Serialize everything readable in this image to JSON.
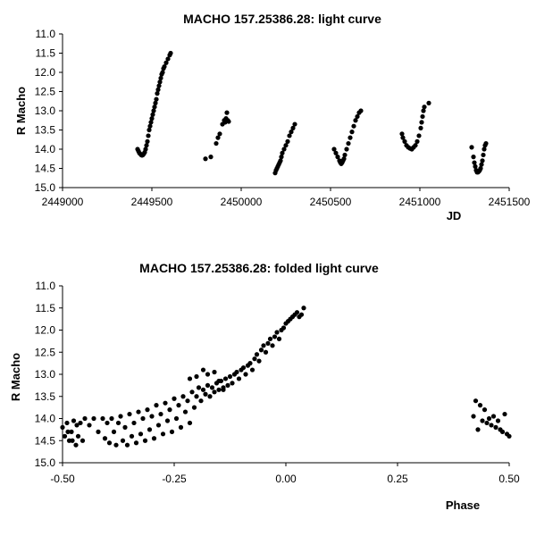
{
  "chart_data": [
    {
      "type": "scatter",
      "title": "MACHO 157.25386.28: light curve",
      "xlabel": "JD",
      "ylabel": "R Macho",
      "xlim": [
        2449000,
        2451500
      ],
      "ylim": [
        11.0,
        15.0
      ],
      "y_inverted": true,
      "grid": false,
      "legend": "none",
      "xticks": [
        "2449000",
        "2449500",
        "2450000",
        "2450500",
        "2451000",
        "2451500"
      ],
      "yticks": [
        "11.0",
        "11.5",
        "12.0",
        "12.5",
        "13.0",
        "13.5",
        "14.0",
        "14.5",
        "15.0"
      ],
      "color": "#000000",
      "points": [
        [
          2449420,
          14.0
        ],
        [
          2449425,
          14.05
        ],
        [
          2449430,
          14.1
        ],
        [
          2449435,
          14.12
        ],
        [
          2449440,
          14.15
        ],
        [
          2449445,
          14.16
        ],
        [
          2449450,
          14.15
        ],
        [
          2449455,
          14.12
        ],
        [
          2449460,
          14.08
        ],
        [
          2449465,
          14.0
        ],
        [
          2449470,
          13.9
        ],
        [
          2449475,
          13.8
        ],
        [
          2449480,
          13.65
        ],
        [
          2449485,
          13.5
        ],
        [
          2449490,
          13.4
        ],
        [
          2449495,
          13.3
        ],
        [
          2449500,
          13.2
        ],
        [
          2449505,
          13.1
        ],
        [
          2449510,
          13.0
        ],
        [
          2449515,
          12.9
        ],
        [
          2449520,
          12.8
        ],
        [
          2449525,
          12.7
        ],
        [
          2449530,
          12.55
        ],
        [
          2449535,
          12.45
        ],
        [
          2449540,
          12.35
        ],
        [
          2449545,
          12.25
        ],
        [
          2449550,
          12.15
        ],
        [
          2449555,
          12.05
        ],
        [
          2449560,
          12.0
        ],
        [
          2449565,
          11.9
        ],
        [
          2449570,
          11.85
        ],
        [
          2449580,
          11.75
        ],
        [
          2449590,
          11.65
        ],
        [
          2449600,
          11.55
        ],
        [
          2449605,
          11.5
        ],
        [
          2449800,
          14.25
        ],
        [
          2449830,
          14.2
        ],
        [
          2449860,
          13.85
        ],
        [
          2449870,
          13.7
        ],
        [
          2449880,
          13.6
        ],
        [
          2449895,
          13.35
        ],
        [
          2449905,
          13.25
        ],
        [
          2449910,
          13.3
        ],
        [
          2449915,
          13.2
        ],
        [
          2449920,
          13.05
        ],
        [
          2449925,
          13.25
        ],
        [
          2449930,
          13.28
        ],
        [
          2450190,
          14.62
        ],
        [
          2450195,
          14.55
        ],
        [
          2450200,
          14.5
        ],
        [
          2450205,
          14.45
        ],
        [
          2450210,
          14.4
        ],
        [
          2450215,
          14.35
        ],
        [
          2450220,
          14.3
        ],
        [
          2450225,
          14.2
        ],
        [
          2450230,
          14.1
        ],
        [
          2450240,
          14.0
        ],
        [
          2450250,
          13.9
        ],
        [
          2450260,
          13.8
        ],
        [
          2450270,
          13.65
        ],
        [
          2450280,
          13.55
        ],
        [
          2450290,
          13.45
        ],
        [
          2450300,
          13.35
        ],
        [
          2450520,
          14.0
        ],
        [
          2450530,
          14.1
        ],
        [
          2450540,
          14.2
        ],
        [
          2450550,
          14.3
        ],
        [
          2450555,
          14.35
        ],
        [
          2450560,
          14.38
        ],
        [
          2450565,
          14.35
        ],
        [
          2450570,
          14.3
        ],
        [
          2450575,
          14.25
        ],
        [
          2450580,
          14.15
        ],
        [
          2450590,
          14.0
        ],
        [
          2450600,
          13.85
        ],
        [
          2450610,
          13.7
        ],
        [
          2450620,
          13.55
        ],
        [
          2450630,
          13.4
        ],
        [
          2450640,
          13.25
        ],
        [
          2450650,
          13.15
        ],
        [
          2450660,
          13.05
        ],
        [
          2450670,
          13.0
        ],
        [
          2450900,
          13.6
        ],
        [
          2450905,
          13.7
        ],
        [
          2450915,
          13.8
        ],
        [
          2450925,
          13.9
        ],
        [
          2450935,
          13.95
        ],
        [
          2450945,
          13.98
        ],
        [
          2450955,
          14.0
        ],
        [
          2450965,
          13.95
        ],
        [
          2450975,
          13.9
        ],
        [
          2450985,
          13.8
        ],
        [
          2450995,
          13.65
        ],
        [
          2451005,
          13.45
        ],
        [
          2451010,
          13.3
        ],
        [
          2451015,
          13.15
        ],
        [
          2451020,
          13.0
        ],
        [
          2451025,
          12.9
        ],
        [
          2451050,
          12.8
        ],
        [
          2451290,
          13.95
        ],
        [
          2451300,
          14.2
        ],
        [
          2451305,
          14.35
        ],
        [
          2451310,
          14.45
        ],
        [
          2451315,
          14.55
        ],
        [
          2451320,
          14.6
        ],
        [
          2451325,
          14.6
        ],
        [
          2451330,
          14.58
        ],
        [
          2451335,
          14.55
        ],
        [
          2451340,
          14.5
        ],
        [
          2451345,
          14.4
        ],
        [
          2451350,
          14.3
        ],
        [
          2451355,
          14.15
        ],
        [
          2451360,
          14.0
        ],
        [
          2451365,
          13.9
        ],
        [
          2451370,
          13.85
        ]
      ]
    },
    {
      "type": "scatter",
      "title": "MACHO 157.25386.28: folded light curve",
      "xlabel": "Phase",
      "ylabel": "R Macho",
      "xlim": [
        -0.5,
        0.5
      ],
      "ylim": [
        11.0,
        15.0
      ],
      "y_inverted": true,
      "grid": false,
      "legend": "none",
      "xticks": [
        "-0.50",
        "-0.25",
        "0.00",
        "0.25",
        "0.50"
      ],
      "yticks": [
        "11.0",
        "11.5",
        "12.0",
        "12.5",
        "13.0",
        "13.5",
        "14.0",
        "14.5",
        "15.0"
      ],
      "color": "#000000",
      "points": [
        [
          -0.5,
          14.2
        ],
        [
          -0.495,
          14.4
        ],
        [
          -0.49,
          14.1
        ],
        [
          -0.488,
          14.3
        ],
        [
          -0.485,
          14.5
        ],
        [
          -0.48,
          14.3
        ],
        [
          -0.478,
          14.5
        ],
        [
          -0.475,
          14.05
        ],
        [
          -0.47,
          14.6
        ],
        [
          -0.468,
          14.15
        ],
        [
          -0.465,
          14.4
        ],
        [
          -0.46,
          14.1
        ],
        [
          -0.455,
          14.5
        ],
        [
          -0.45,
          14.0
        ],
        [
          -0.44,
          14.15
        ],
        [
          -0.43,
          14.0
        ],
        [
          -0.42,
          14.3
        ],
        [
          -0.41,
          14.0
        ],
        [
          -0.405,
          14.45
        ],
        [
          -0.4,
          14.1
        ],
        [
          -0.395,
          14.55
        ],
        [
          -0.39,
          14.0
        ],
        [
          -0.385,
          14.3
        ],
        [
          -0.38,
          14.6
        ],
        [
          -0.375,
          14.1
        ],
        [
          -0.37,
          13.95
        ],
        [
          -0.365,
          14.5
        ],
        [
          -0.36,
          14.2
        ],
        [
          -0.355,
          14.6
        ],
        [
          -0.35,
          13.9
        ],
        [
          -0.345,
          14.4
        ],
        [
          -0.34,
          14.1
        ],
        [
          -0.335,
          14.55
        ],
        [
          -0.33,
          13.85
        ],
        [
          -0.325,
          14.35
        ],
        [
          -0.32,
          14.0
        ],
        [
          -0.315,
          14.5
        ],
        [
          -0.31,
          13.8
        ],
        [
          -0.305,
          14.25
        ],
        [
          -0.3,
          13.95
        ],
        [
          -0.295,
          14.45
        ],
        [
          -0.29,
          13.7
        ],
        [
          -0.285,
          14.15
        ],
        [
          -0.28,
          13.9
        ],
        [
          -0.275,
          14.35
        ],
        [
          -0.27,
          13.65
        ],
        [
          -0.265,
          14.05
        ],
        [
          -0.26,
          13.8
        ],
        [
          -0.255,
          14.3
        ],
        [
          -0.25,
          13.55
        ],
        [
          -0.245,
          14.0
        ],
        [
          -0.24,
          13.7
        ],
        [
          -0.235,
          14.2
        ],
        [
          -0.23,
          13.5
        ],
        [
          -0.225,
          13.85
        ],
        [
          -0.22,
          13.6
        ],
        [
          -0.215,
          14.1
        ],
        [
          -0.21,
          13.4
        ],
        [
          -0.205,
          13.75
        ],
        [
          -0.2,
          13.5
        ],
        [
          -0.195,
          13.3
        ],
        [
          -0.19,
          13.6
        ],
        [
          -0.185,
          13.35
        ],
        [
          -0.18,
          13.45
        ],
        [
          -0.175,
          13.25
        ],
        [
          -0.17,
          13.5
        ],
        [
          -0.165,
          13.3
        ],
        [
          -0.16,
          13.4
        ],
        [
          -0.155,
          13.2
        ],
        [
          -0.15,
          13.35
        ],
        [
          -0.145,
          13.15
        ],
        [
          -0.14,
          13.3
        ],
        [
          -0.135,
          13.1
        ],
        [
          -0.13,
          13.25
        ],
        [
          -0.125,
          13.05
        ],
        [
          -0.12,
          13.2
        ],
        [
          -0.115,
          13.0
        ],
        [
          -0.11,
          12.95
        ],
        [
          -0.105,
          13.1
        ],
        [
          -0.1,
          12.9
        ],
        [
          -0.095,
          12.85
        ],
        [
          -0.09,
          13.0
        ],
        [
          -0.085,
          12.8
        ],
        [
          -0.08,
          12.75
        ],
        [
          -0.075,
          12.9
        ],
        [
          -0.07,
          12.65
        ],
        [
          -0.065,
          12.55
        ],
        [
          -0.06,
          12.7
        ],
        [
          -0.055,
          12.45
        ],
        [
          -0.05,
          12.35
        ],
        [
          -0.045,
          12.5
        ],
        [
          -0.04,
          12.3
        ],
        [
          -0.035,
          12.2
        ],
        [
          -0.03,
          12.35
        ],
        [
          -0.025,
          12.15
        ],
        [
          -0.02,
          12.05
        ],
        [
          -0.015,
          12.2
        ],
        [
          -0.01,
          12.0
        ],
        [
          -0.005,
          11.95
        ],
        [
          0.0,
          11.85
        ],
        [
          0.005,
          11.8
        ],
        [
          0.01,
          11.75
        ],
        [
          0.015,
          11.7
        ],
        [
          0.02,
          11.65
        ],
        [
          0.025,
          11.6
        ],
        [
          0.03,
          11.7
        ],
        [
          0.035,
          11.65
        ],
        [
          0.04,
          11.5
        ],
        [
          -0.215,
          13.1
        ],
        [
          -0.2,
          13.05
        ],
        [
          -0.185,
          12.9
        ],
        [
          -0.175,
          13.0
        ],
        [
          -0.16,
          12.95
        ],
        [
          -0.15,
          13.15
        ],
        [
          -0.14,
          13.35
        ],
        [
          0.42,
          13.95
        ],
        [
          0.425,
          13.6
        ],
        [
          0.43,
          14.25
        ],
        [
          0.435,
          13.7
        ],
        [
          0.44,
          14.05
        ],
        [
          0.445,
          13.8
        ],
        [
          0.45,
          14.1
        ],
        [
          0.455,
          14.0
        ],
        [
          0.46,
          14.15
        ],
        [
          0.465,
          13.95
        ],
        [
          0.47,
          14.2
        ],
        [
          0.475,
          14.05
        ],
        [
          0.48,
          14.25
        ],
        [
          0.485,
          14.3
        ],
        [
          0.49,
          13.9
        ],
        [
          0.495,
          14.35
        ],
        [
          0.5,
          14.4
        ]
      ]
    }
  ]
}
